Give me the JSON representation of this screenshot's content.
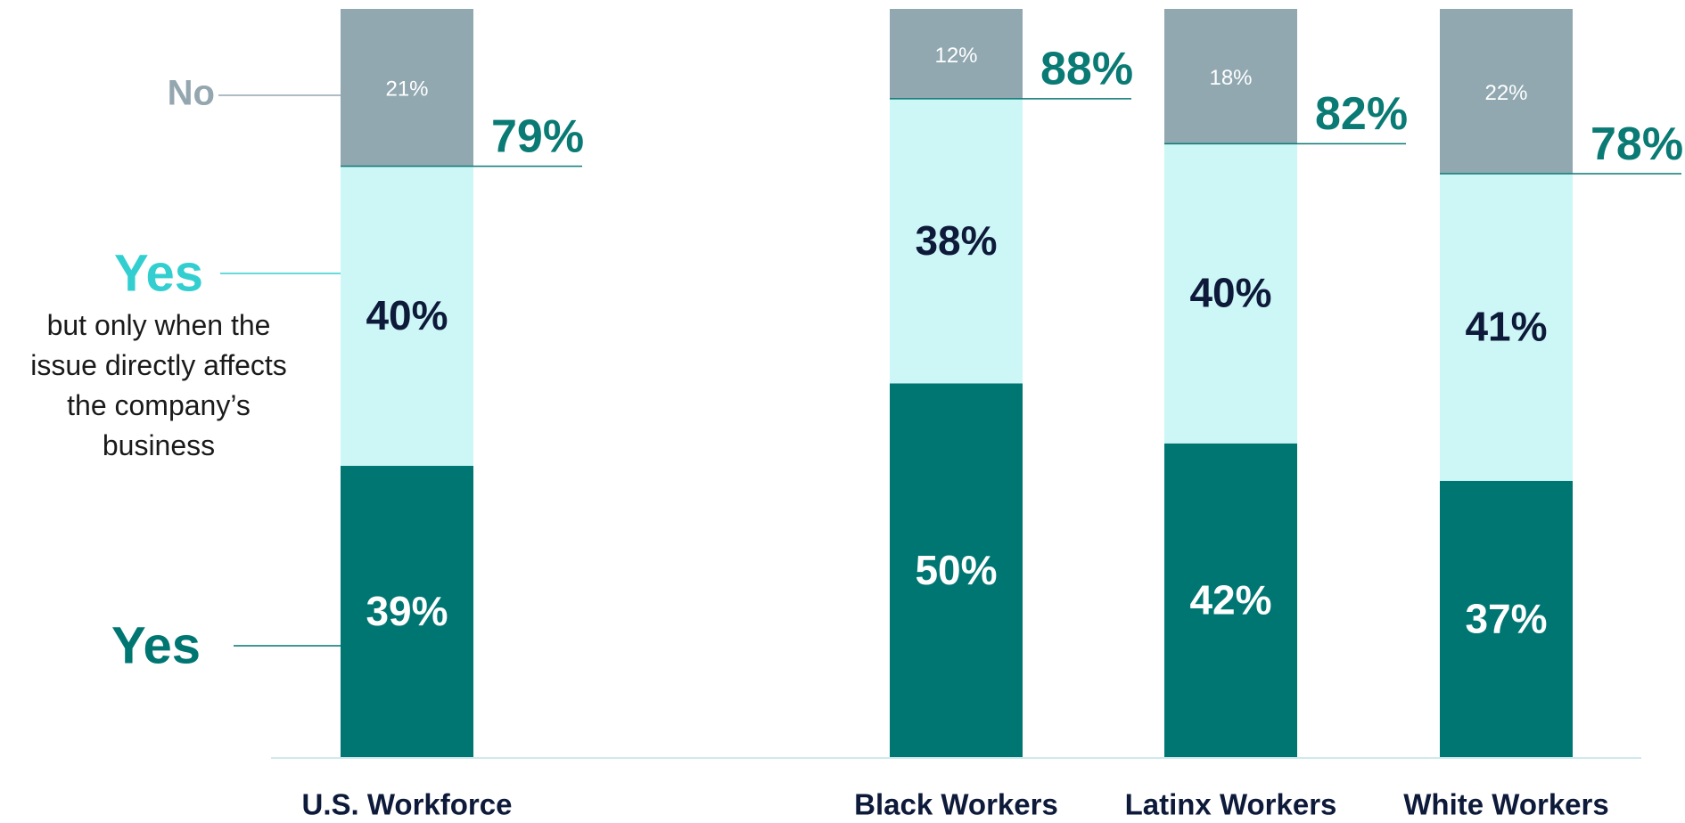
{
  "chart_data": {
    "type": "stacked_bar",
    "categories": [
      "U.S. Workforce",
      "Black Workers",
      "Latinx Workers",
      "White Workers"
    ],
    "series": [
      {
        "name": "Yes",
        "color": "#007672",
        "text_color": "#ffffff",
        "values": [
          39,
          50,
          42,
          37
        ],
        "value_labels": [
          "39%",
          "50%",
          "42%",
          "37%"
        ]
      },
      {
        "name": "Yes",
        "description": "but only when the issue directly affects the company’s business",
        "color": "#cdf7f6",
        "text_color": "#0e1a3a",
        "legend_color": "#33cfd0",
        "values": [
          40,
          38,
          40,
          41
        ],
        "value_labels": [
          "40%",
          "38%",
          "40%",
          "41%"
        ]
      },
      {
        "name": "No",
        "color": "#91a8b1",
        "text_color": "#ffffff",
        "legend_color": "#94a6b0",
        "values": [
          21,
          12,
          18,
          22
        ],
        "value_labels": [
          "21%",
          "12%",
          "18%",
          "22%"
        ]
      }
    ],
    "totals": {
      "color": "#0a7a74",
      "values": [
        79,
        88,
        82,
        78
      ],
      "value_labels": [
        "79%",
        "88%",
        "82%",
        "78%"
      ]
    },
    "ylim": [
      0,
      100
    ]
  }
}
